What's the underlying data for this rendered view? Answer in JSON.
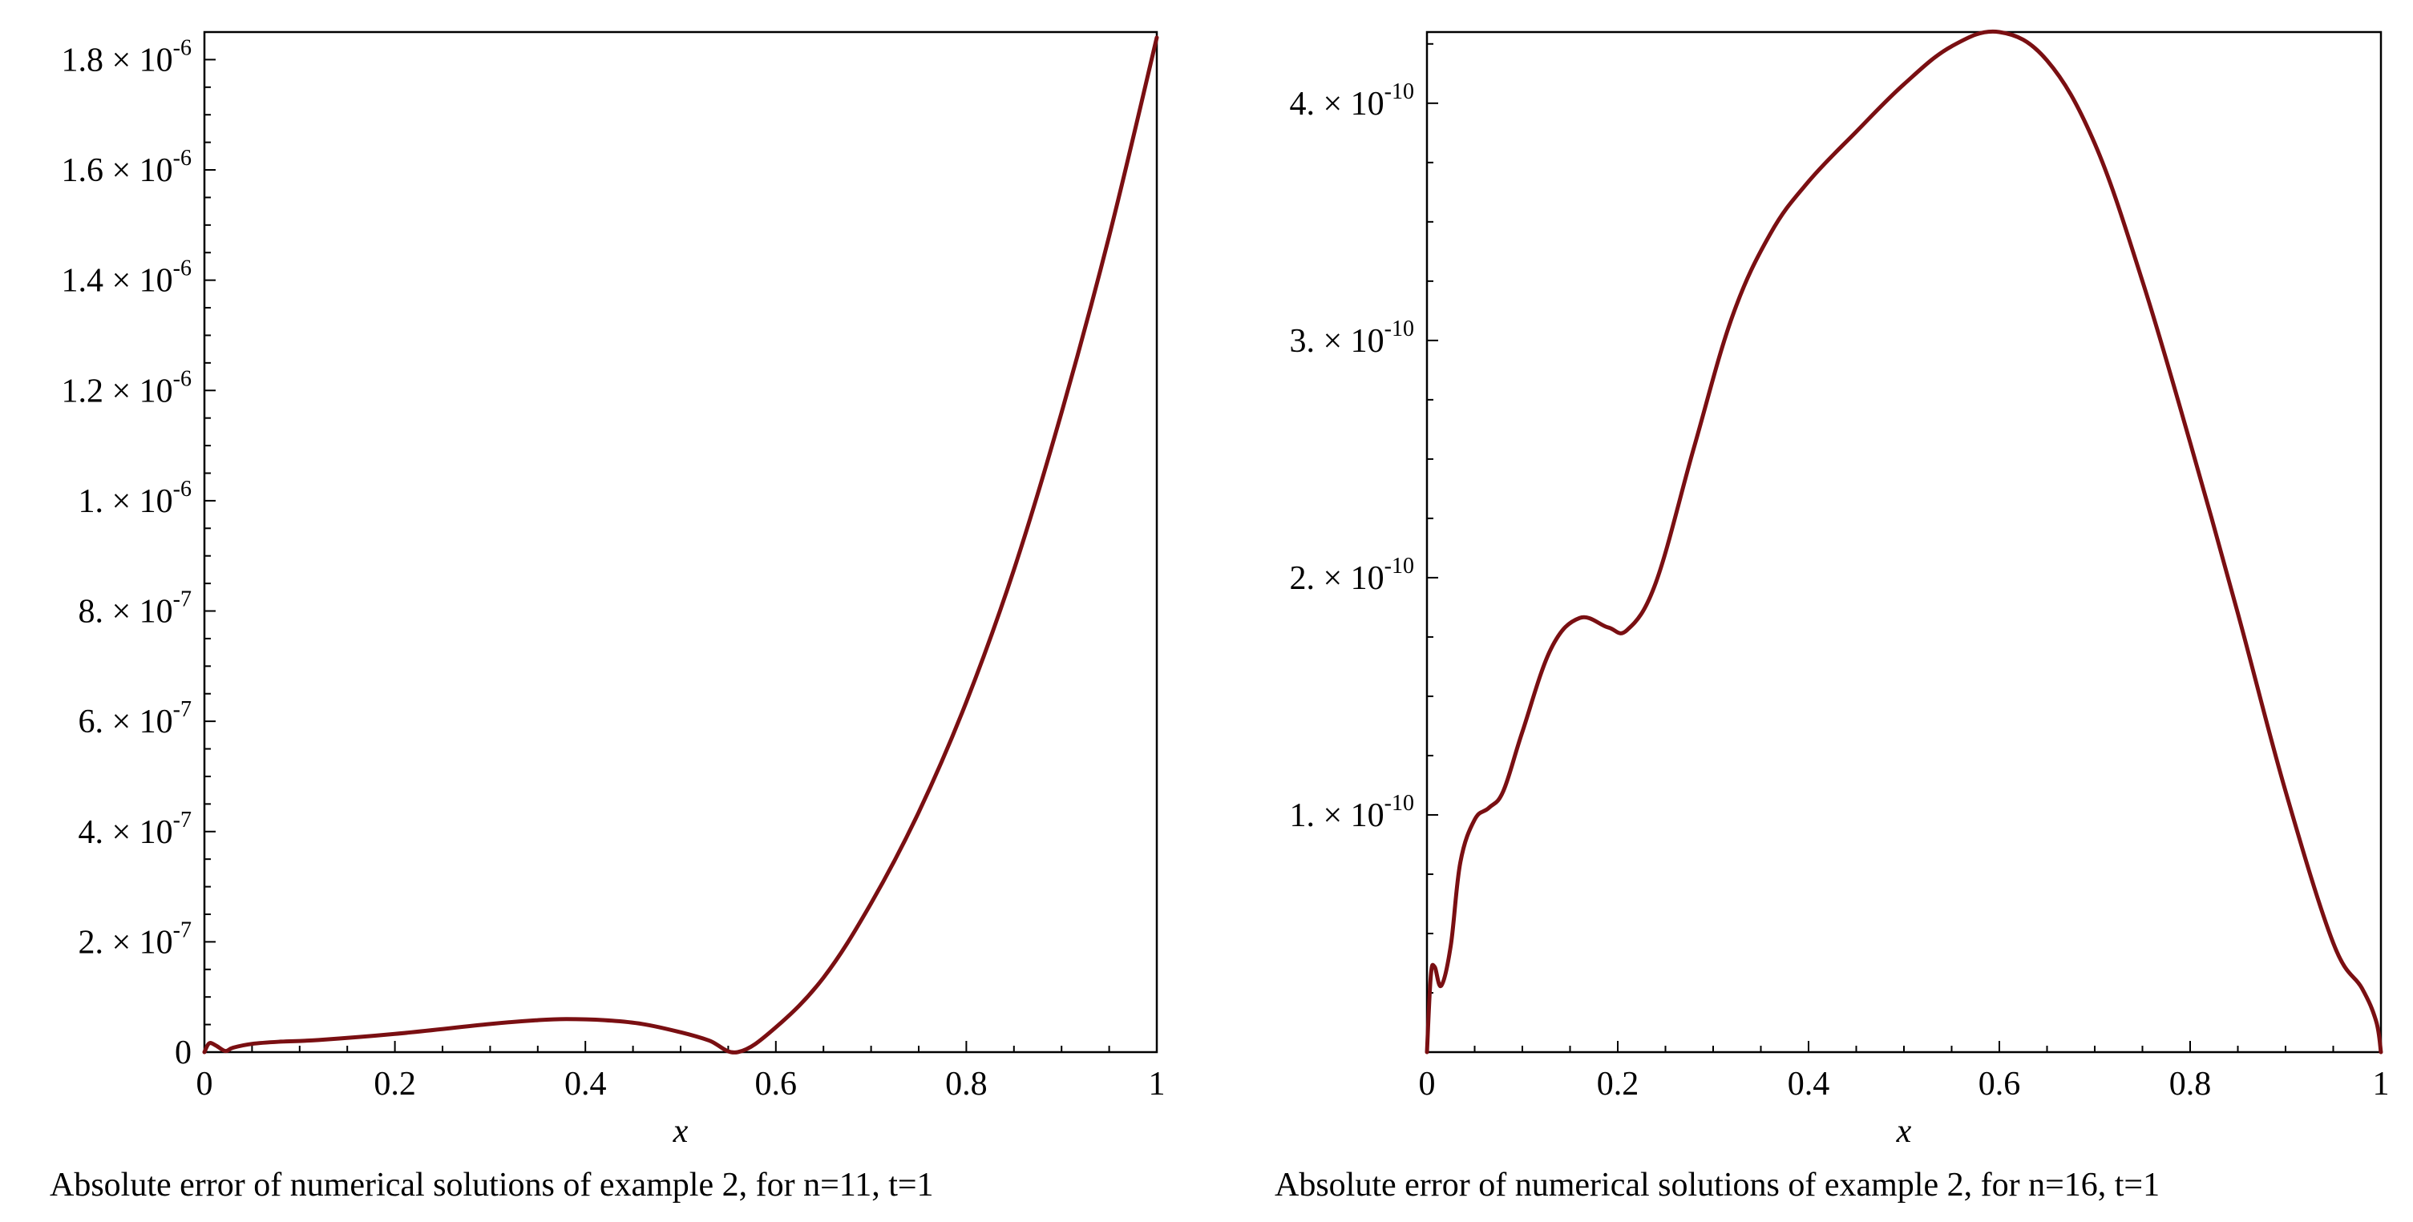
{
  "chart_data": [
    {
      "type": "line",
      "title": "",
      "caption": "Absolute error of numerical solutions of example 2, for n=11, t=1",
      "xlabel": "x",
      "ylabel": "",
      "xlim": [
        0,
        1
      ],
      "ylim": [
        0,
        1.85e-06
      ],
      "grid": false,
      "line_color": "#7a0f12",
      "x_ticks": [
        {
          "value": 0,
          "label": "0"
        },
        {
          "value": 0.2,
          "label": "0.2"
        },
        {
          "value": 0.4,
          "label": "0.4"
        },
        {
          "value": 0.6,
          "label": "0.6"
        },
        {
          "value": 0.8,
          "label": "0.8"
        },
        {
          "value": 1,
          "label": "1"
        }
      ],
      "y_ticks": [
        {
          "value": 0,
          "mant": "0",
          "exp": ""
        },
        {
          "value": 2e-07,
          "mant": "2. × 10",
          "exp": "-7"
        },
        {
          "value": 4e-07,
          "mant": "4. × 10",
          "exp": "-7"
        },
        {
          "value": 6e-07,
          "mant": "6. × 10",
          "exp": "-7"
        },
        {
          "value": 8e-07,
          "mant": "8. × 10",
          "exp": "-7"
        },
        {
          "value": 1e-06,
          "mant": "1. × 10",
          "exp": "-6"
        },
        {
          "value": 1.2e-06,
          "mant": "1.2 × 10",
          "exp": "-6"
        },
        {
          "value": 1.4e-06,
          "mant": "1.4 × 10",
          "exp": "-6"
        },
        {
          "value": 1.6e-06,
          "mant": "1.6 × 10",
          "exp": "-6"
        },
        {
          "value": 1.8e-06,
          "mant": "1.8 × 10",
          "exp": "-6"
        }
      ],
      "series": [
        {
          "name": "absolute error n=11",
          "x": [
            0,
            0.005,
            0.012,
            0.022,
            0.03,
            0.05,
            0.08,
            0.12,
            0.2,
            0.3,
            0.35,
            0.38,
            0.42,
            0.46,
            0.5,
            0.53,
            0.56,
            0.6,
            0.65,
            0.7,
            0.75,
            0.8,
            0.85,
            0.9,
            0.95,
            1.0
          ],
          "y": [
            0,
            1.6e-08,
            1.2e-08,
            2e-09,
            8e-09,
            1.5e-08,
            1.9e-08,
            2.2e-08,
            3.3e-08,
            5.1e-08,
            5.8e-08,
            6e-08,
            5.8e-08,
            5.1e-08,
            3.6e-08,
            2.1e-08,
            0,
            4.5e-08,
            1.35e-07,
            2.7e-07,
            4.35e-07,
            6.35e-07,
            8.75e-07,
            1.16e-06,
            1.48e-06,
            1.84e-06
          ]
        }
      ]
    },
    {
      "type": "line",
      "title": "",
      "caption": "Absolute error of numerical solutions of example 2, for n=16, t=1",
      "xlabel": "x",
      "ylabel": "",
      "xlim": [
        0,
        1
      ],
      "ylim": [
        0,
        4.3e-10
      ],
      "grid": false,
      "line_color": "#7a0f12",
      "x_ticks": [
        {
          "value": 0,
          "label": "0"
        },
        {
          "value": 0.2,
          "label": "0.2"
        },
        {
          "value": 0.4,
          "label": "0.4"
        },
        {
          "value": 0.6,
          "label": "0.6"
        },
        {
          "value": 0.8,
          "label": "0.8"
        },
        {
          "value": 1,
          "label": "1"
        }
      ],
      "y_ticks": [
        {
          "value": 1e-10,
          "mant": "1. × 10",
          "exp": "-10"
        },
        {
          "value": 2e-10,
          "mant": "2. × 10",
          "exp": "-10"
        },
        {
          "value": 3e-10,
          "mant": "3. × 10",
          "exp": "-10"
        },
        {
          "value": 4e-10,
          "mant": "4. × 10",
          "exp": "-10"
        }
      ],
      "series": [
        {
          "name": "absolute error n=16",
          "x": [
            0,
            0.004,
            0.008,
            0.015,
            0.025,
            0.035,
            0.05,
            0.065,
            0.08,
            0.1,
            0.13,
            0.16,
            0.19,
            0.21,
            0.24,
            0.28,
            0.32,
            0.36,
            0.4,
            0.45,
            0.5,
            0.55,
            0.6,
            0.65,
            0.7,
            0.75,
            0.8,
            0.85,
            0.9,
            0.95,
            0.98,
            0.995,
            1.0
          ],
          "y": [
            0,
            3.2e-11,
            3.6e-11,
            2.8e-11,
            4.5e-11,
            8e-11,
            9.8e-11,
            1.03e-10,
            1.1e-10,
            1.35e-10,
            1.7e-10,
            1.83e-10,
            1.79e-10,
            1.78e-10,
            1.98e-10,
            2.55e-10,
            3.1e-10,
            3.45e-10,
            3.67e-10,
            3.88e-10,
            4.08e-10,
            4.24e-10,
            4.3e-10,
            4.18e-10,
            3.83e-10,
            3.25e-10,
            2.57e-10,
            1.85e-10,
            1.1e-10,
            4.6e-11,
            2.7e-11,
            1.3e-11,
            0
          ]
        }
      ]
    }
  ]
}
